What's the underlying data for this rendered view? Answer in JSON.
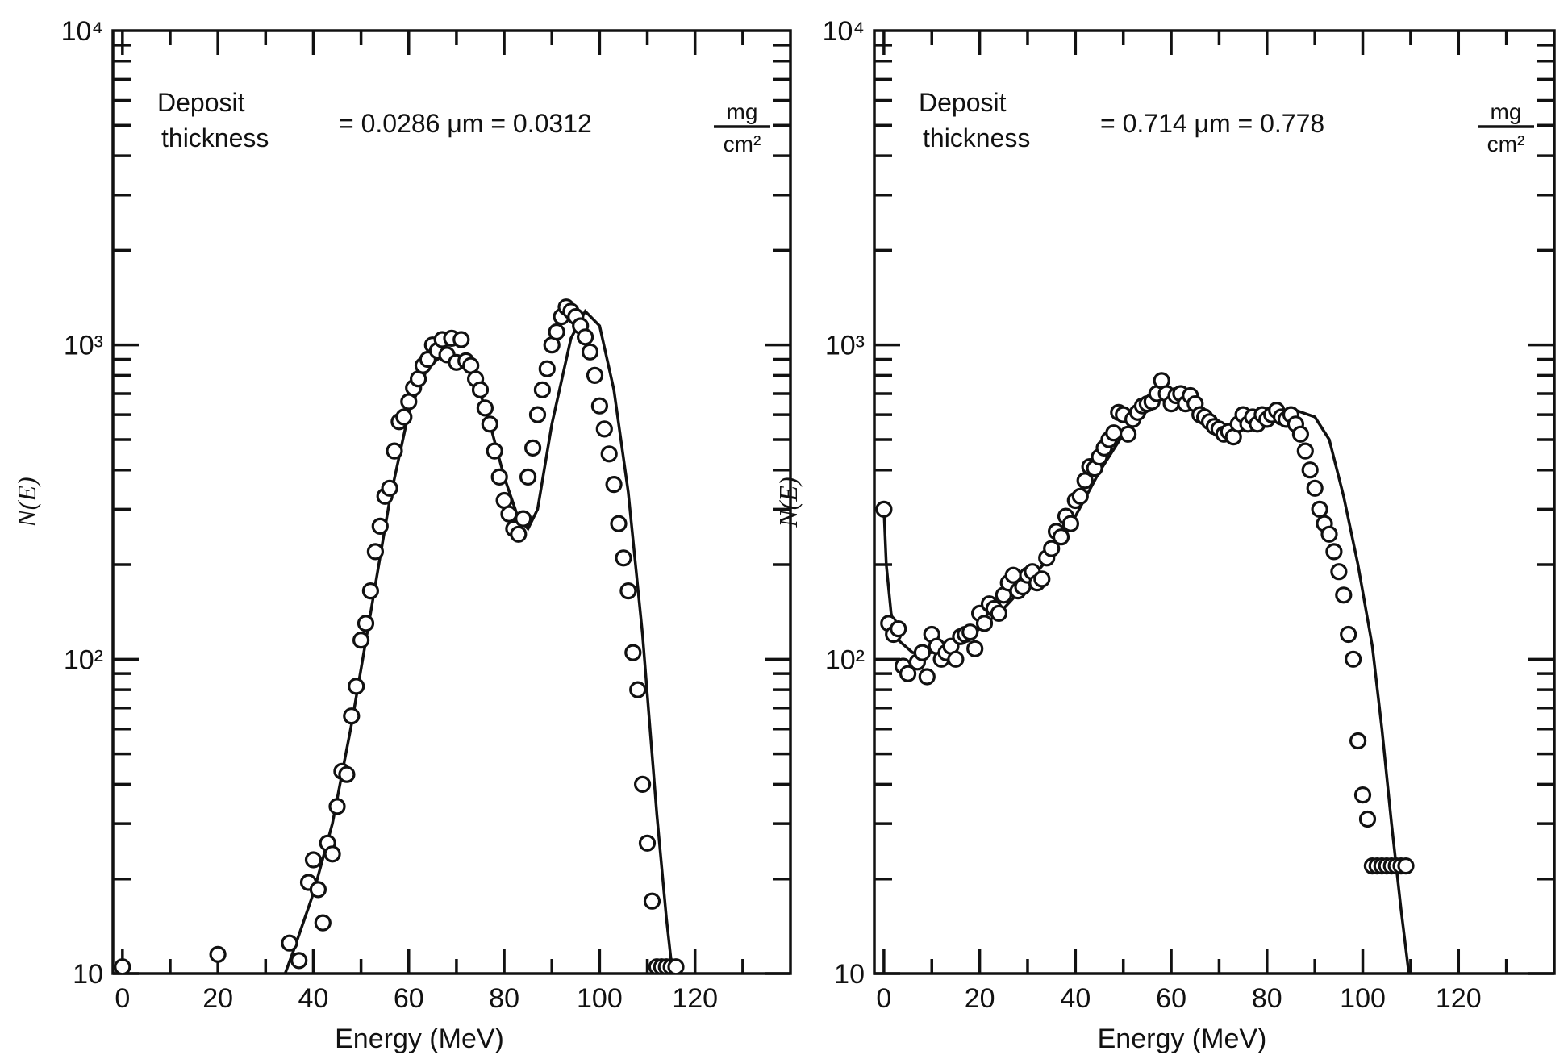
{
  "chart_data": [
    {
      "type": "scatter",
      "title": "",
      "xlabel": "Energy (MeV)",
      "ylabel": "N(E)",
      "xlim": [
        -2,
        140
      ],
      "ylim": [
        10,
        10000
      ],
      "yscale": "log",
      "xticks": [
        "0",
        "20",
        "40",
        "60",
        "80",
        "100",
        "120"
      ],
      "yticks": [
        "10",
        "10²",
        "10³",
        "10⁴"
      ],
      "annotation": {
        "line1": "Deposit",
        "line2": "thickness",
        "value": "= 0.0286 μm = 0.0312",
        "unit_num": "mg",
        "unit_den": "cm²"
      },
      "series": [
        {
          "points_x": [
            0,
            20,
            35,
            37,
            39,
            40,
            41,
            42,
            43,
            44,
            45,
            46,
            47,
            48,
            49,
            50,
            51,
            52,
            53,
            54,
            55,
            56,
            57,
            58,
            59,
            60,
            61,
            62,
            63,
            64,
            65,
            66,
            67,
            68,
            69,
            70,
            71,
            72,
            73,
            74,
            75,
            76,
            77,
            78,
            79,
            80,
            81,
            82,
            83,
            84,
            85,
            86,
            87,
            88,
            89,
            90,
            91,
            92,
            93,
            94,
            95,
            96,
            97,
            98,
            99,
            100,
            101,
            102,
            103,
            104,
            105,
            106,
            107,
            108,
            109,
            110,
            111,
            112,
            113,
            114,
            115,
            116
          ],
          "points_y": [
            10.5,
            11.5,
            12.5,
            11,
            19.5,
            23,
            18.5,
            14.5,
            26,
            24,
            34,
            44,
            43,
            66,
            82,
            115,
            130,
            165,
            220,
            265,
            330,
            350,
            460,
            570,
            590,
            660,
            730,
            780,
            860,
            900,
            1000,
            960,
            1040,
            930,
            1050,
            880,
            1040,
            890,
            860,
            780,
            720,
            630,
            560,
            460,
            380,
            320,
            290,
            260,
            250,
            280,
            380,
            470,
            600,
            720,
            840,
            1000,
            1100,
            1230,
            1320,
            1280,
            1230,
            1150,
            1060,
            950,
            800,
            640,
            540,
            450,
            360,
            270,
            210,
            165,
            105,
            80,
            40,
            26,
            17,
            10.5,
            10.5,
            10.5,
            10.5,
            10.5
          ],
          "curve_x": [
            33,
            36,
            40,
            44,
            48,
            52,
            56,
            60,
            64,
            68,
            72,
            76,
            80,
            83,
            85,
            87,
            90,
            94,
            97,
            100,
            103,
            106,
            109,
            112,
            114,
            116
          ],
          "curve_y": [
            9,
            12,
            18,
            30,
            62,
            140,
            320,
            610,
            850,
            950,
            880,
            640,
            380,
            280,
            260,
            300,
            560,
            1050,
            1280,
            1150,
            720,
            340,
            120,
            32,
            15,
            8
          ]
        }
      ]
    },
    {
      "type": "scatter",
      "title": "",
      "xlabel": "Energy (MeV)",
      "ylabel": "N(E)",
      "xlim": [
        -2,
        140
      ],
      "ylim": [
        10,
        10000
      ],
      "yscale": "log",
      "xticks": [
        "0",
        "20",
        "40",
        "60",
        "80",
        "100",
        "120"
      ],
      "yticks": [
        "10",
        "10²",
        "10³",
        "10⁴"
      ],
      "annotation": {
        "line1": "Deposit",
        "line2": "thickness",
        "value": "= 0.714 μm = 0.778",
        "unit_num": "mg",
        "unit_den": "cm²"
      },
      "series": [
        {
          "points_x": [
            0,
            1,
            2,
            3,
            4,
            5,
            7,
            8,
            9,
            10,
            11,
            12,
            13,
            14,
            15,
            16,
            17,
            18,
            19,
            20,
            21,
            22,
            23,
            24,
            25,
            26,
            27,
            28,
            29,
            30,
            31,
            32,
            33,
            34,
            35,
            36,
            37,
            38,
            39,
            40,
            41,
            42,
            43,
            44,
            45,
            46,
            47,
            48,
            49,
            50,
            51,
            52,
            53,
            54,
            55,
            56,
            57,
            58,
            59,
            60,
            61,
            62,
            63,
            64,
            65,
            66,
            67,
            68,
            69,
            70,
            71,
            72,
            73,
            74,
            75,
            76,
            77,
            78,
            79,
            80,
            81,
            82,
            83,
            84,
            85,
            86,
            87,
            88,
            89,
            90,
            91,
            92,
            93,
            94,
            95,
            96,
            97,
            98,
            99,
            100,
            101,
            102,
            103,
            104,
            105,
            106,
            107,
            108,
            109
          ],
          "points_y": [
            300,
            130,
            120,
            125,
            95,
            90,
            98,
            105,
            88,
            120,
            110,
            100,
            105,
            110,
            100,
            118,
            120,
            122,
            108,
            140,
            130,
            150,
            145,
            140,
            160,
            175,
            185,
            165,
            170,
            185,
            190,
            175,
            180,
            210,
            225,
            255,
            245,
            285,
            270,
            320,
            330,
            370,
            410,
            405,
            440,
            470,
            500,
            525,
            610,
            600,
            520,
            580,
            610,
            640,
            650,
            660,
            700,
            770,
            700,
            650,
            690,
            700,
            650,
            690,
            650,
            600,
            590,
            570,
            550,
            540,
            520,
            530,
            510,
            560,
            600,
            560,
            590,
            560,
            600,
            580,
            600,
            620,
            590,
            580,
            600,
            560,
            520,
            460,
            400,
            350,
            300,
            270,
            250,
            220,
            190,
            160,
            120,
            100,
            55,
            37,
            31,
            22,
            22,
            22,
            22,
            22,
            22,
            22,
            22
          ],
          "curve_x": [
            0,
            0.5,
            1.5,
            3,
            6,
            10,
            15,
            20,
            25,
            30,
            35,
            40,
            45,
            50,
            55,
            58,
            62,
            66,
            70,
            74,
            78,
            82,
            86,
            90,
            93,
            96,
            99,
            102,
            104,
            106,
            108,
            110
          ],
          "curve_y": [
            300,
            200,
            140,
            115,
            105,
            105,
            110,
            125,
            145,
            175,
            215,
            285,
            395,
            520,
            640,
            700,
            690,
            630,
            570,
            530,
            560,
            600,
            620,
            590,
            500,
            330,
            200,
            110,
            60,
            30,
            16,
            9
          ]
        }
      ]
    }
  ]
}
